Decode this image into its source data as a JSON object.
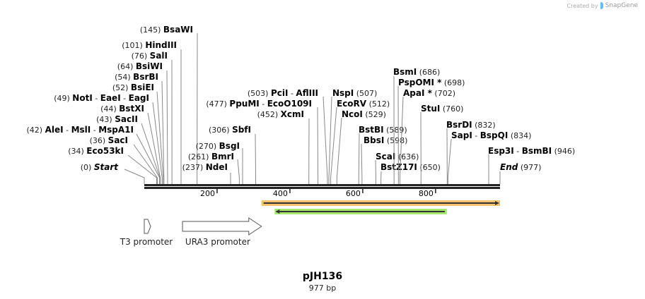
{
  "credit": {
    "prefix": "Created by",
    "brand": "SnapGene"
  },
  "map": {
    "name": "pJH136",
    "length_label": "977 bp",
    "length_bp": 977,
    "ticks": [
      200,
      400,
      600,
      800
    ]
  },
  "sites": [
    {
      "names": [
        "BsaWI"
      ],
      "pos": 145
    },
    {
      "names": [
        "HindIII"
      ],
      "pos": 101
    },
    {
      "names": [
        "SalI"
      ],
      "pos": 76
    },
    {
      "names": [
        "BsiWI"
      ],
      "pos": 64
    },
    {
      "names": [
        "BsrBI"
      ],
      "pos": 54
    },
    {
      "names": [
        "BsiEI"
      ],
      "pos": 52
    },
    {
      "names": [
        "NotI",
        "EaeI",
        "EagI"
      ],
      "pos": 49
    },
    {
      "names": [
        "BstXI"
      ],
      "pos": 44
    },
    {
      "names": [
        "SacII"
      ],
      "pos": 43
    },
    {
      "names": [
        "AleI",
        "MslI",
        "MspA1I"
      ],
      "pos": 42
    },
    {
      "names": [
        "SacI"
      ],
      "pos": 36
    },
    {
      "names": [
        "Eco53kI"
      ],
      "pos": 34
    },
    {
      "names": [
        "Start"
      ],
      "pos": 0,
      "italic": true
    },
    {
      "names": [
        "NdeI"
      ],
      "pos": 237
    },
    {
      "names": [
        "BmrI"
      ],
      "pos": 261
    },
    {
      "names": [
        "BsgI"
      ],
      "pos": 270
    },
    {
      "names": [
        "SbfI"
      ],
      "pos": 306
    },
    {
      "names": [
        "PpuMI",
        "EcoO109I"
      ],
      "pos": 477
    },
    {
      "names": [
        "XcmI"
      ],
      "pos": 452
    },
    {
      "names": [
        "PciI",
        "AflIII"
      ],
      "pos": 503
    },
    {
      "names": [
        "NspI"
      ],
      "pos": 507
    },
    {
      "names": [
        "EcoRV"
      ],
      "pos": 512
    },
    {
      "names": [
        "NcoI"
      ],
      "pos": 529
    },
    {
      "names": [
        "BstBI"
      ],
      "pos": 589
    },
    {
      "names": [
        "BbsI"
      ],
      "pos": 598
    },
    {
      "names": [
        "ScaI"
      ],
      "pos": 636
    },
    {
      "names": [
        "BstZ17I"
      ],
      "pos": 650
    },
    {
      "names": [
        "BsmI"
      ],
      "pos": 686
    },
    {
      "names": [
        "PspOMI *"
      ],
      "pos": 698
    },
    {
      "names": [
        "ApaI *"
      ],
      "pos": 702
    },
    {
      "names": [
        "StuI"
      ],
      "pos": 760
    },
    {
      "names": [
        "BsrDI"
      ],
      "pos": 832
    },
    {
      "names": [
        "SapI",
        "BspQI"
      ],
      "pos": 834
    },
    {
      "names": [
        "Esp3I",
        "BsmBI"
      ],
      "pos": 946
    },
    {
      "names": [
        "End"
      ],
      "pos": 977,
      "italic": true
    }
  ],
  "features": [
    {
      "type": "orf",
      "start": 322,
      "end": 977,
      "direction": "forward",
      "color": "#f5c26b"
    },
    {
      "type": "orf",
      "start": 358,
      "end": 831,
      "direction": "reverse",
      "color": "#a6e86f"
    },
    {
      "type": "promoter",
      "label": "T3 promoter",
      "start": 0,
      "end": 18,
      "direction": "forward"
    },
    {
      "type": "promoter",
      "label": "URA3 promoter",
      "start": 105,
      "end": 322,
      "direction": "forward"
    }
  ]
}
